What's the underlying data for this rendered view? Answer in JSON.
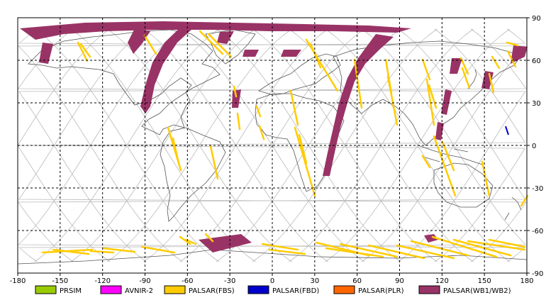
{
  "map": {
    "lon_range": [
      -180,
      180
    ],
    "lat_range": [
      -90,
      90
    ],
    "grid": "dashed every 30 degrees",
    "x_ticks": [
      "-180",
      "-150",
      "-120",
      "-90",
      "-60",
      "-30",
      "0",
      "30",
      "60",
      "90",
      "120",
      "150",
      "180"
    ],
    "y_ticks": [
      "90",
      "60",
      "30",
      "0",
      "-30",
      "-60",
      "-90"
    ]
  },
  "legend": [
    {
      "label": "PRSIM",
      "color": "#99cc00"
    },
    {
      "label": "AVNIR-2",
      "color": "#ff00ff"
    },
    {
      "label": "PALSAR(FBS)",
      "color": "#ffcc00"
    },
    {
      "label": "PALSAR(FBD)",
      "color": "#0000cc"
    },
    {
      "label": "PALSAR(PLR)",
      "color": "#ff6600"
    },
    {
      "label": "PALSAR(WB1/WB2)",
      "color": "#993366"
    }
  ],
  "colors": {
    "grid": "#000000",
    "orbit": "#bbbbbb",
    "coast": "#555555",
    "wb": "#993366",
    "fbs": "#ffcc00",
    "fbd": "#0000cc"
  }
}
